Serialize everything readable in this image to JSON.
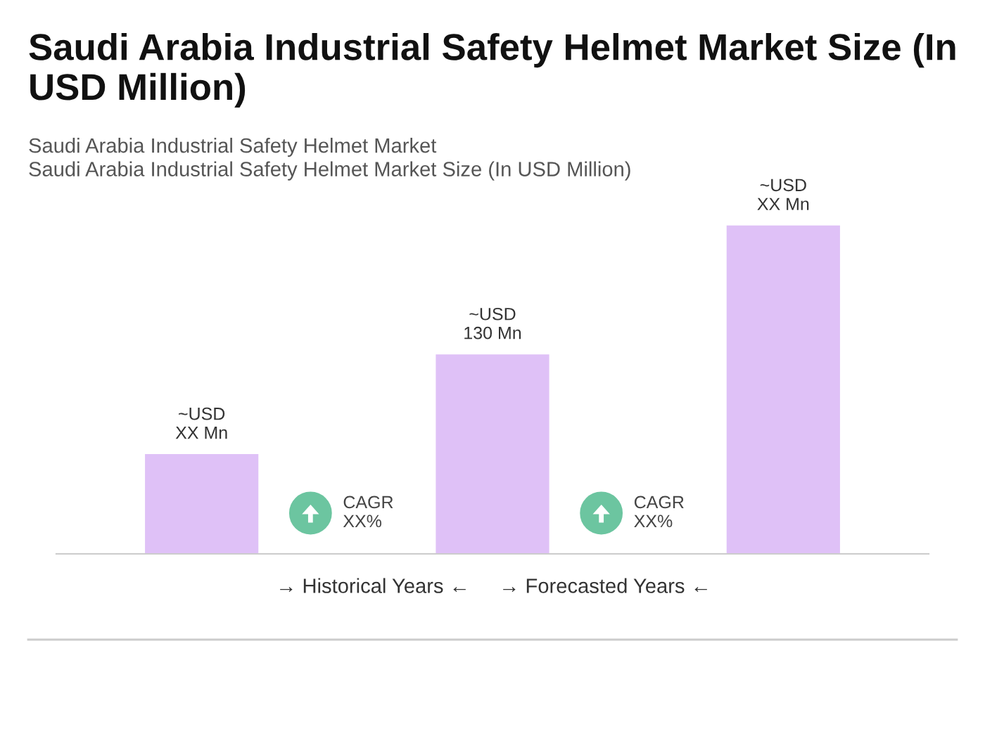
{
  "chart_data": {
    "type": "bar",
    "title": "Saudi Arabia Industrial Safety Helmet Market Size (In USD Million)",
    "subtitle": "Saudi Arabia Industrial Safety Helmet Market\nSaudi Arabia Industrial Safety Helmet Market Size (In USD Million)",
    "categories": [
      null,
      null,
      null
    ],
    "values": [
      65,
      130,
      214
    ],
    "color": "#dfc1f7",
    "value_labels": [
      "~USD\nXX Mn",
      "~USD\n130 Mn",
      "~USD\nXX Mn"
    ],
    "annotations": [
      "CAGR\nXX%",
      "CAGR\nXX%",
      "→ Historical Years ←",
      "→ Forecasted Years ←"
    ],
    "grid": false,
    "legend": false
  }
}
